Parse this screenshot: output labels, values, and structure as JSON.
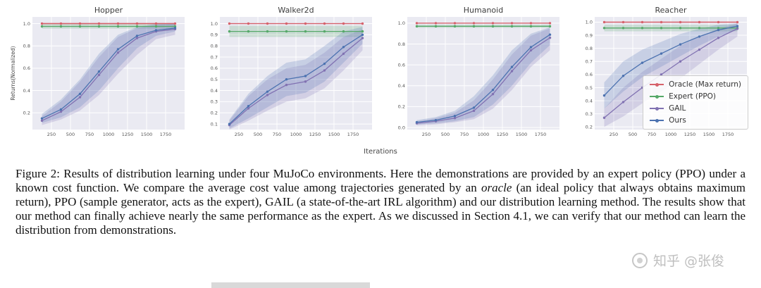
{
  "figure": {
    "xlabel": "Iterations",
    "ylabel": "Returns(Normalized)"
  },
  "legend": {
    "entries": [
      {
        "label": "Oracle (Max return)",
        "color": "#d6616b"
      },
      {
        "label": "Expert (PPO)",
        "color": "#55a868"
      },
      {
        "label": "GAIL",
        "color": "#8172b2"
      },
      {
        "label": "Ours",
        "color": "#4c72b0"
      }
    ]
  },
  "chart_data": [
    {
      "type": "line",
      "title": "Hopper",
      "ylabel": "Returns(Normalized)",
      "x": [
        125,
        375,
        625,
        875,
        1125,
        1375,
        1625,
        1875
      ],
      "xticks": [
        250,
        500,
        750,
        1000,
        1250,
        1500,
        1750
      ],
      "xlim": [
        0,
        2000
      ],
      "ylim": [
        0.05,
        1.06
      ],
      "yticks": [
        0.2,
        0.4,
        0.6,
        0.8,
        1.0
      ],
      "series": [
        {
          "name": "Oracle (Max return)",
          "color": "#d6616b",
          "values": [
            1.0,
            1.0,
            1.0,
            1.0,
            1.0,
            1.0,
            1.0,
            1.0
          ],
          "lo": [
            0.99,
            0.99,
            0.99,
            0.99,
            0.99,
            0.99,
            0.99,
            0.99
          ],
          "hi": [
            1.01,
            1.01,
            1.01,
            1.01,
            1.01,
            1.01,
            1.01,
            1.01
          ]
        },
        {
          "name": "Expert (PPO)",
          "color": "#55a868",
          "values": [
            0.975,
            0.975,
            0.975,
            0.975,
            0.975,
            0.975,
            0.975,
            0.975
          ],
          "lo": [
            0.955,
            0.955,
            0.955,
            0.955,
            0.955,
            0.955,
            0.955,
            0.955
          ],
          "hi": [
            0.995,
            0.995,
            0.995,
            0.995,
            0.995,
            0.995,
            0.995,
            0.995
          ]
        },
        {
          "name": "GAIL",
          "color": "#8172b2",
          "values": [
            0.13,
            0.21,
            0.34,
            0.54,
            0.74,
            0.87,
            0.93,
            0.95
          ],
          "lo": [
            0.09,
            0.14,
            0.22,
            0.36,
            0.55,
            0.72,
            0.86,
            0.9
          ],
          "hi": [
            0.17,
            0.3,
            0.48,
            0.7,
            0.88,
            0.96,
            0.99,
            1.0
          ]
        },
        {
          "name": "Ours",
          "color": "#4c72b0",
          "values": [
            0.15,
            0.23,
            0.37,
            0.57,
            0.77,
            0.89,
            0.94,
            0.96
          ],
          "lo": [
            0.11,
            0.16,
            0.25,
            0.4,
            0.6,
            0.78,
            0.89,
            0.93
          ],
          "hi": [
            0.19,
            0.32,
            0.5,
            0.73,
            0.9,
            0.97,
            1.0,
            1.0
          ]
        }
      ]
    },
    {
      "type": "line",
      "title": "Walker2d",
      "x": [
        125,
        375,
        625,
        875,
        1125,
        1375,
        1625,
        1875
      ],
      "xticks": [
        250,
        500,
        750,
        1000,
        1250,
        1500,
        1750
      ],
      "xlim": [
        0,
        2000
      ],
      "ylim": [
        0.05,
        1.06
      ],
      "yticks": [
        0.1,
        0.2,
        0.3,
        0.4,
        0.5,
        0.6,
        0.7,
        0.8,
        0.9,
        1.0
      ],
      "series": [
        {
          "name": "Oracle (Max return)",
          "color": "#d6616b",
          "values": [
            1.0,
            1.0,
            1.0,
            1.0,
            1.0,
            1.0,
            1.0,
            1.0
          ],
          "lo": [
            0.995,
            0.995,
            0.995,
            0.995,
            0.995,
            0.995,
            0.995,
            0.995
          ],
          "hi": [
            1.005,
            1.005,
            1.005,
            1.005,
            1.005,
            1.005,
            1.005,
            1.005
          ]
        },
        {
          "name": "Expert (PPO)",
          "color": "#55a868",
          "values": [
            0.93,
            0.93,
            0.93,
            0.93,
            0.93,
            0.93,
            0.93,
            0.93
          ],
          "lo": [
            0.88,
            0.88,
            0.88,
            0.88,
            0.88,
            0.88,
            0.88,
            0.88
          ],
          "hi": [
            0.98,
            0.98,
            0.98,
            0.98,
            0.98,
            0.98,
            0.98,
            0.98
          ]
        },
        {
          "name": "GAIL",
          "color": "#8172b2",
          "values": [
            0.09,
            0.24,
            0.36,
            0.45,
            0.48,
            0.58,
            0.73,
            0.87
          ],
          "lo": [
            0.05,
            0.13,
            0.22,
            0.3,
            0.33,
            0.42,
            0.58,
            0.76
          ],
          "hi": [
            0.13,
            0.35,
            0.5,
            0.6,
            0.63,
            0.74,
            0.88,
            0.95
          ]
        },
        {
          "name": "Ours",
          "color": "#4c72b0",
          "values": [
            0.1,
            0.26,
            0.39,
            0.5,
            0.53,
            0.64,
            0.79,
            0.9
          ],
          "lo": [
            0.06,
            0.15,
            0.25,
            0.35,
            0.38,
            0.48,
            0.65,
            0.82
          ],
          "hi": [
            0.14,
            0.37,
            0.53,
            0.65,
            0.68,
            0.8,
            0.93,
            0.97
          ]
        }
      ]
    },
    {
      "type": "line",
      "title": "Humanoid",
      "x": [
        125,
        375,
        625,
        875,
        1125,
        1375,
        1625,
        1875
      ],
      "xticks": [
        250,
        500,
        750,
        1000,
        1250,
        1500,
        1750
      ],
      "xlim": [
        0,
        2000
      ],
      "ylim": [
        -0.02,
        1.06
      ],
      "yticks": [
        0.0,
        0.2,
        0.4,
        0.6,
        0.8,
        1.0
      ],
      "series": [
        {
          "name": "Oracle (Max return)",
          "color": "#d6616b",
          "values": [
            1.0,
            1.0,
            1.0,
            1.0,
            1.0,
            1.0,
            1.0,
            1.0
          ],
          "lo": [
            0.995,
            0.995,
            0.995,
            0.995,
            0.995,
            0.995,
            0.995,
            0.995
          ],
          "hi": [
            1.005,
            1.005,
            1.005,
            1.005,
            1.005,
            1.005,
            1.005,
            1.005
          ]
        },
        {
          "name": "Expert (PPO)",
          "color": "#55a868",
          "values": [
            0.97,
            0.97,
            0.97,
            0.97,
            0.97,
            0.97,
            0.97,
            0.97
          ],
          "lo": [
            0.955,
            0.955,
            0.955,
            0.955,
            0.955,
            0.955,
            0.955,
            0.955
          ],
          "hi": [
            0.985,
            0.985,
            0.985,
            0.985,
            0.985,
            0.985,
            0.985,
            0.985
          ]
        },
        {
          "name": "GAIL",
          "color": "#8172b2",
          "values": [
            0.04,
            0.06,
            0.09,
            0.16,
            0.32,
            0.54,
            0.74,
            0.86
          ],
          "lo": [
            0.02,
            0.03,
            0.05,
            0.08,
            0.18,
            0.36,
            0.58,
            0.74
          ],
          "hi": [
            0.06,
            0.09,
            0.14,
            0.26,
            0.46,
            0.7,
            0.88,
            0.95
          ]
        },
        {
          "name": "Ours",
          "color": "#4c72b0",
          "values": [
            0.05,
            0.07,
            0.11,
            0.19,
            0.36,
            0.58,
            0.77,
            0.89
          ],
          "lo": [
            0.03,
            0.04,
            0.06,
            0.1,
            0.22,
            0.4,
            0.62,
            0.79
          ],
          "hi": [
            0.07,
            0.1,
            0.16,
            0.3,
            0.5,
            0.74,
            0.9,
            0.96
          ]
        }
      ]
    },
    {
      "type": "line",
      "title": "Reacher",
      "x": [
        125,
        375,
        625,
        875,
        1125,
        1375,
        1625,
        1875
      ],
      "xticks": [
        250,
        500,
        750,
        1000,
        1250,
        1500,
        1750
      ],
      "xlim": [
        0,
        2000
      ],
      "ylim": [
        0.18,
        1.04
      ],
      "yticks": [
        0.2,
        0.3,
        0.4,
        0.5,
        0.6,
        0.7,
        0.8,
        0.9,
        1.0
      ],
      "series": [
        {
          "name": "Oracle (Max return)",
          "color": "#d6616b",
          "values": [
            1.0,
            1.0,
            1.0,
            1.0,
            1.0,
            1.0,
            1.0,
            1.0
          ],
          "lo": [
            0.995,
            0.995,
            0.995,
            0.995,
            0.995,
            0.995,
            0.995,
            0.995
          ],
          "hi": [
            1.005,
            1.005,
            1.005,
            1.005,
            1.005,
            1.005,
            1.005,
            1.005
          ]
        },
        {
          "name": "Expert (PPO)",
          "color": "#55a868",
          "values": [
            0.955,
            0.955,
            0.955,
            0.955,
            0.955,
            0.955,
            0.955,
            0.955
          ],
          "lo": [
            0.93,
            0.93,
            0.93,
            0.93,
            0.93,
            0.93,
            0.93,
            0.93
          ],
          "hi": [
            0.98,
            0.98,
            0.98,
            0.98,
            0.98,
            0.98,
            0.98,
            0.98
          ]
        },
        {
          "name": "GAIL",
          "color": "#8172b2",
          "values": [
            0.27,
            0.39,
            0.5,
            0.6,
            0.7,
            0.79,
            0.88,
            0.95
          ],
          "lo": [
            0.2,
            0.28,
            0.38,
            0.47,
            0.57,
            0.68,
            0.79,
            0.89
          ],
          "hi": [
            0.34,
            0.5,
            0.62,
            0.72,
            0.82,
            0.89,
            0.95,
            0.99
          ]
        },
        {
          "name": "Ours",
          "color": "#4c72b0",
          "values": [
            0.44,
            0.59,
            0.69,
            0.76,
            0.83,
            0.89,
            0.94,
            0.97
          ],
          "lo": [
            0.34,
            0.47,
            0.58,
            0.66,
            0.74,
            0.82,
            0.89,
            0.94
          ],
          "hi": [
            0.54,
            0.7,
            0.79,
            0.85,
            0.91,
            0.95,
            0.98,
            0.99
          ]
        }
      ]
    }
  ],
  "caption": {
    "part1": "Figure 2: Results of distribution learning under four MuJoCo environments. Here the demonstrations are provided by an expert policy (PPO) under a known cost function. We compare the average cost value among trajectories generated by an ",
    "italic1": "oracle",
    "part2": " (an ideal policy that always obtains maximum return), PPO (sample generator, acts as the expert), GAIL (a state-of-the-art IRL algorithm) and our distribution learning method. The results show that our method can finally achieve nearly the same performance as the expert. As we discussed in Section 4.1, we can verify that our method can learn the distribution from demonstrations."
  },
  "watermark": {
    "text": "知乎 @张俊"
  }
}
